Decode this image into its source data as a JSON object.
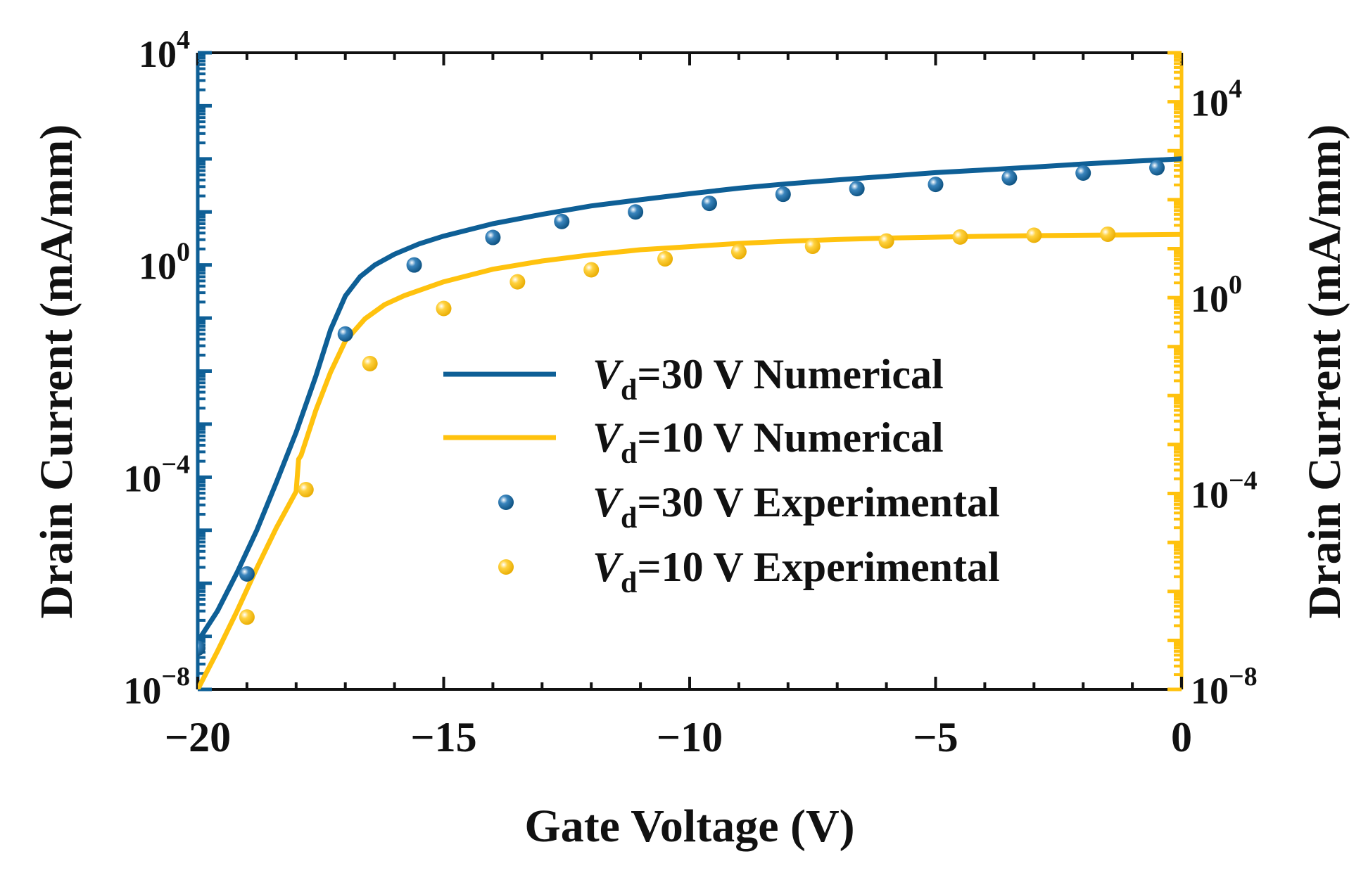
{
  "chart_data": {
    "type": "line",
    "xlabel": "Gate Voltage (V)",
    "ylabel_left": "Drain Current (mA/mm)",
    "ylabel_right": "Drain Current (mA/mm)",
    "xlim": [
      -20,
      0
    ],
    "x_ticks": [
      -20,
      -15,
      -10,
      -5,
      0
    ],
    "x_tick_labels": [
      "−20",
      "−15",
      "−10",
      "−5",
      "0"
    ],
    "y_scale": "log",
    "ylim_left": [
      1e-08,
      10000
    ],
    "ylim_right": [
      1e-08,
      100000
    ],
    "y_left_ticks": [
      {
        "value": 10000,
        "base": "10",
        "exp": "4"
      },
      {
        "value": 1,
        "base": "10",
        "exp": "0"
      },
      {
        "value": 0.0001,
        "base": "10",
        "exp": "−4"
      },
      {
        "value": 1e-08,
        "base": "10",
        "exp": "−8"
      }
    ],
    "y_right_ticks": [
      {
        "value": 10000,
        "base": "10",
        "exp": "4"
      },
      {
        "value": 1,
        "base": "10",
        "exp": "0"
      },
      {
        "value": 0.0001,
        "base": "10",
        "exp": "−4"
      },
      {
        "value": 1e-08,
        "base": "10",
        "exp": "−8"
      }
    ],
    "legend_position": "center-right",
    "series": [
      {
        "name_italic": "V",
        "name_sub": "d",
        "name_rest": "=30 V Numerical",
        "kind": "line",
        "axis": "left",
        "color": "#0e5f96",
        "x": [
          -20,
          -19.6,
          -19.2,
          -18.8,
          -18.4,
          -18.0,
          -17.6,
          -17.3,
          -17.0,
          -16.7,
          -16.4,
          -16.0,
          -15.5,
          -15.0,
          -14.0,
          -13.0,
          -12.0,
          -11.0,
          -10.0,
          -9.0,
          -8.0,
          -7.0,
          -6.0,
          -5.0,
          -4.0,
          -3.0,
          -2.0,
          -1.0,
          0.0
        ],
        "y": [
          8e-08,
          3e-07,
          1.6e-06,
          1e-05,
          8e-05,
          0.0007,
          0.008,
          0.06,
          0.26,
          0.6,
          1.0,
          1.6,
          2.5,
          3.5,
          6.0,
          9.0,
          13,
          17,
          22,
          28,
          34,
          40,
          47,
          55,
          62,
          70,
          80,
          90,
          100
        ]
      },
      {
        "name_italic": "V",
        "name_sub": "d",
        "name_rest": "=10 V Numerical",
        "kind": "line",
        "axis": "right",
        "color": "#ffc20e",
        "x": [
          -20,
          -19.6,
          -19.2,
          -18.8,
          -18.4,
          -18.0,
          -17.95,
          -17.9,
          -17.6,
          -17.3,
          -17.0,
          -16.6,
          -16.2,
          -15.8,
          -15.0,
          -14.0,
          -13.0,
          -12.0,
          -11.0,
          -10.0,
          -9.0,
          -8.0,
          -7.0,
          -6.0,
          -5.0,
          -4.0,
          -3.0,
          -2.0,
          -1.0,
          0.0
        ],
        "y": [
          1e-08,
          6e-08,
          4e-07,
          3e-06,
          2e-05,
          0.00011,
          0.0005,
          0.0006,
          0.005,
          0.03,
          0.13,
          0.37,
          0.72,
          1.1,
          2.1,
          3.8,
          5.6,
          7.5,
          9.5,
          11,
          12.8,
          14.2,
          15.4,
          16.4,
          17.2,
          17.9,
          18.4,
          18.8,
          19.1,
          19.5
        ]
      },
      {
        "name_italic": "V",
        "name_sub": "d",
        "name_rest": "=30 V Experimental",
        "kind": "scatter",
        "axis": "left",
        "color": "#0e5f96",
        "x": [
          -20,
          -19.0,
          -17.0,
          -15.6,
          -14.0,
          -12.6,
          -11.1,
          -9.6,
          -8.1,
          -6.6,
          -5.0,
          -3.5,
          -2.0,
          -0.5
        ],
        "y": [
          6e-08,
          1.5e-06,
          0.05,
          1.0,
          3.3,
          6.6,
          10,
          14.5,
          21.5,
          27.5,
          33,
          44,
          54,
          68
        ]
      },
      {
        "name_italic": "V",
        "name_sub": "d",
        "name_rest": "=10 V Experimental",
        "kind": "scatter",
        "axis": "right",
        "color": "#ffc20e",
        "x": [
          -19.0,
          -17.8,
          -16.5,
          -15.0,
          -13.5,
          -12.0,
          -10.5,
          -9.0,
          -7.5,
          -6.0,
          -4.5,
          -3.0,
          -1.5
        ],
        "y": [
          3e-07,
          0.00012,
          0.045,
          0.6,
          2.1,
          3.7,
          6.2,
          8.7,
          11.2,
          14.3,
          17.3,
          18.8,
          19.7
        ]
      }
    ]
  }
}
